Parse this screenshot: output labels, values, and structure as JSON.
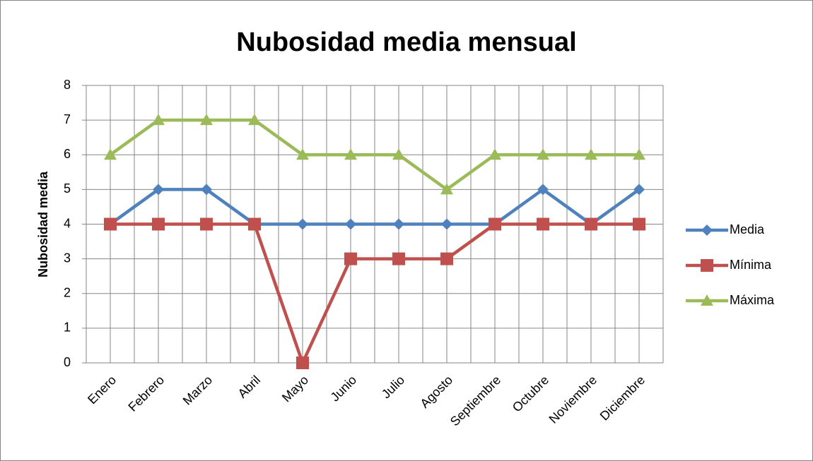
{
  "chart_data": {
    "type": "line",
    "title": "Nubosidad media mensual",
    "y_label": "Nubosidad media",
    "categories": [
      "Enero",
      "Febrero",
      "Marzo",
      "Abril",
      "Mayo",
      "Junio",
      "Julio",
      "Agosto",
      "Septiembre",
      "Octubre",
      "Noviembre",
      "Diciembre"
    ],
    "series": [
      {
        "name": "Media",
        "color": "#4f81bd",
        "marker": "diamond",
        "values": [
          4,
          5,
          5,
          4,
          4,
          4,
          4,
          4,
          4,
          5,
          4,
          5
        ]
      },
      {
        "name": "Mínima",
        "color": "#c0504d",
        "marker": "square",
        "values": [
          4,
          4,
          4,
          4,
          0,
          3,
          3,
          3,
          4,
          4,
          4,
          4
        ]
      },
      {
        "name": "Máxima",
        "color": "#9bbb59",
        "marker": "triangle",
        "values": [
          6,
          7,
          7,
          7,
          6,
          6,
          6,
          5,
          6,
          6,
          6,
          6
        ]
      }
    ],
    "ylim": [
      0,
      8
    ],
    "yticks": [
      0,
      1,
      2,
      3,
      4,
      5,
      6,
      7,
      8
    ],
    "grid": true,
    "legend": "right"
  }
}
